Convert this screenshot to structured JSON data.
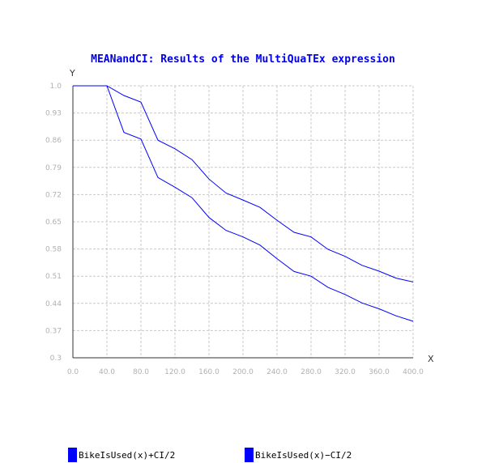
{
  "chart_data": {
    "type": "line",
    "title": "MEANandCI: Results of the MultiQuaTEx expression",
    "xlabel": "X",
    "ylabel": "Y",
    "xlim": [
      0,
      400
    ],
    "ylim": [
      0.3,
      1.0
    ],
    "x_ticks": [
      "0.0",
      "40.0",
      "80.0",
      "120.0",
      "160.0",
      "200.0",
      "240.0",
      "280.0",
      "320.0",
      "360.0",
      "400.0"
    ],
    "y_ticks": [
      "0.3",
      "0.37",
      "0.44",
      "0.51",
      "0.58",
      "0.65",
      "0.72",
      "0.79",
      "0.86",
      "0.93",
      "1.0"
    ],
    "x": [
      0,
      40,
      60,
      80,
      100,
      120,
      140,
      160,
      180,
      200,
      220,
      240,
      260,
      280,
      300,
      320,
      340,
      360,
      380,
      400
    ],
    "grid": true,
    "legend_position": "bottom",
    "series": [
      {
        "name": "BikeIsUsed(x)+CI/2",
        "color": "#0000ff",
        "values": [
          1.0,
          1.0,
          0.975,
          0.958,
          0.86,
          0.838,
          0.81,
          0.76,
          0.724,
          0.706,
          0.687,
          0.654,
          0.623,
          0.611,
          0.579,
          0.561,
          0.538,
          0.523,
          0.505,
          0.495
        ]
      },
      {
        "name": "BikeIsUsed(x)−CI/2",
        "color": "#0000ff",
        "values": [
          1.0,
          1.0,
          0.88,
          0.863,
          0.764,
          0.739,
          0.712,
          0.661,
          0.628,
          0.611,
          0.59,
          0.555,
          0.522,
          0.51,
          0.481,
          0.463,
          0.441,
          0.426,
          0.408,
          0.394
        ]
      }
    ],
    "title_color": "#0000ee"
  }
}
